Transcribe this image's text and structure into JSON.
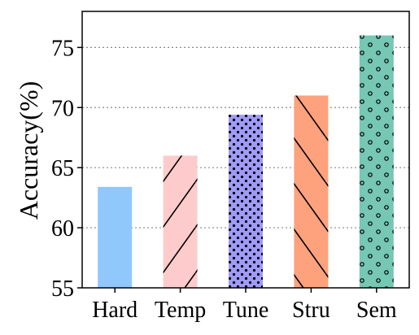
{
  "chart_data": {
    "type": "bar",
    "categories": [
      "Hard",
      "Temp",
      "Tune",
      "Stru",
      "Sem"
    ],
    "values": [
      63.4,
      66.0,
      69.4,
      71.0,
      76.0
    ],
    "bar_colors": [
      "#90c8fb",
      "#fdcbcb",
      "#a09af8",
      "#fda27c",
      "#76c7b3"
    ],
    "bar_patterns": [
      "none",
      "forward-slash",
      "dots",
      "back-slash",
      "circles"
    ],
    "title": "",
    "xlabel": "",
    "ylabel": "Accuracy(%)",
    "ylim": [
      55,
      78
    ],
    "yticks": [
      55,
      60,
      65,
      70,
      75
    ],
    "grid": "y-dotted",
    "legend": "none"
  }
}
